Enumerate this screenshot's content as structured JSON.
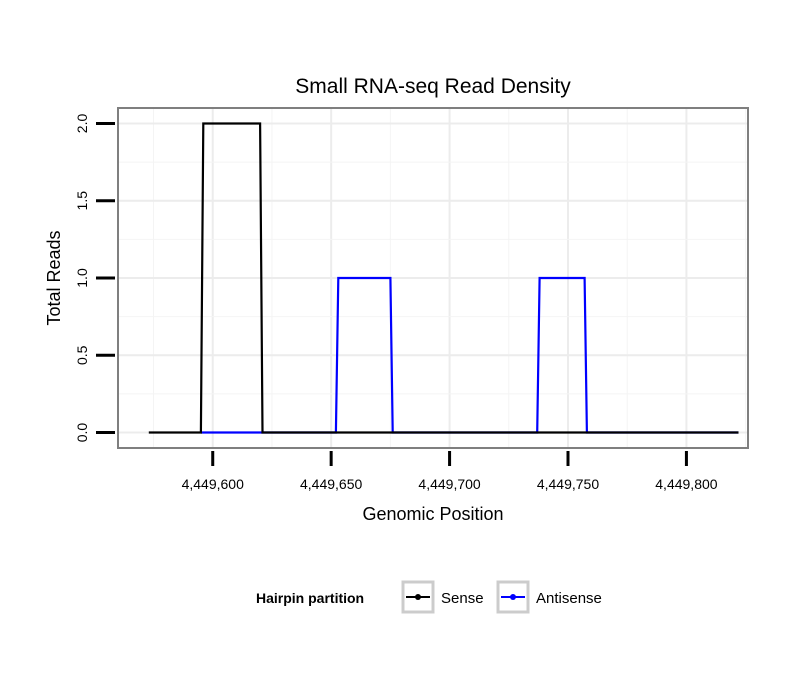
{
  "chart_data": {
    "type": "line",
    "title": "Small RNA-seq Read Density",
    "xlabel": "Genomic Position",
    "ylabel": "Total Reads",
    "xlim": [
      4449560,
      4449826
    ],
    "ylim": [
      -0.1,
      2.1
    ],
    "x_ticks": [
      4449600,
      4449650,
      4449700,
      4449750,
      4449800
    ],
    "x_tick_labels": [
      "4,449,600",
      "4,449,650",
      "4,449,700",
      "4,449,750",
      "4,449,800"
    ],
    "y_ticks": [
      0,
      0.5,
      1,
      1.5,
      2
    ],
    "y_tick_labels": [
      "0.0",
      "0.5",
      "1.0",
      "1.5",
      "2.0"
    ],
    "grid": true,
    "legend": {
      "title": "Hairpin partition",
      "placement": "bottom",
      "entries": [
        "Sense",
        "Antisense"
      ]
    },
    "series": [
      {
        "name": "Sense",
        "color": "#000000",
        "x": [
          4449573,
          4449595,
          4449596,
          4449620,
          4449621,
          4449822
        ],
        "y": [
          0,
          0,
          2,
          2,
          0,
          0
        ]
      },
      {
        "name": "Antisense",
        "color": "#0000ff",
        "x": [
          4449595,
          4449652,
          4449653,
          4449675,
          4449676,
          4449737,
          4449738,
          4449757,
          4449758,
          4449822
        ],
        "y": [
          0,
          0,
          1,
          1,
          0,
          0,
          1,
          1,
          0,
          0
        ]
      }
    ]
  }
}
